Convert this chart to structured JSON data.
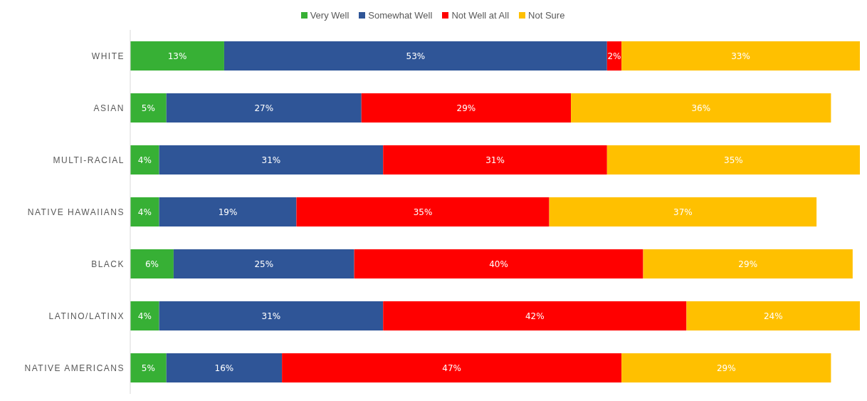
{
  "chart_data": {
    "type": "bar",
    "orientation": "horizontal",
    "stacked": true,
    "legend": "top",
    "categories": [
      "WHITE",
      "ASIAN",
      "MULTI-RACIAL",
      "NATIVE HAWAIIANS",
      "BLACK",
      "LATINO/LATINX",
      "NATIVE AMERICANS"
    ],
    "series": [
      {
        "name": "Very Well",
        "color": "#37b035",
        "values": [
          13,
          5,
          4,
          4,
          6,
          4,
          5
        ],
        "value_labels": [
          "13%",
          "5%",
          "4%",
          "4%",
          "6%",
          "4%",
          "5%"
        ]
      },
      {
        "name": "Somewhat Well",
        "color": "#2f5597",
        "values": [
          53,
          27,
          31,
          19,
          25,
          31,
          16
        ],
        "value_labels": [
          "53%",
          "27%",
          "31%",
          "19%",
          "25%",
          "31%",
          "16%"
        ]
      },
      {
        "name": "Not Well at All",
        "color": "#ff0000",
        "values": [
          2,
          29,
          31,
          35,
          40,
          42,
          47
        ],
        "value_labels": [
          "2%",
          "29%",
          "31%",
          "35%",
          "40%",
          "42%",
          "47%"
        ]
      },
      {
        "name": "Not Sure",
        "color": "#ffc000",
        "values": [
          33,
          36,
          35,
          37,
          29,
          24,
          29
        ],
        "value_labels": [
          "33%",
          "36%",
          "35%",
          "37%",
          "29%",
          "24%",
          "29%"
        ]
      }
    ]
  }
}
